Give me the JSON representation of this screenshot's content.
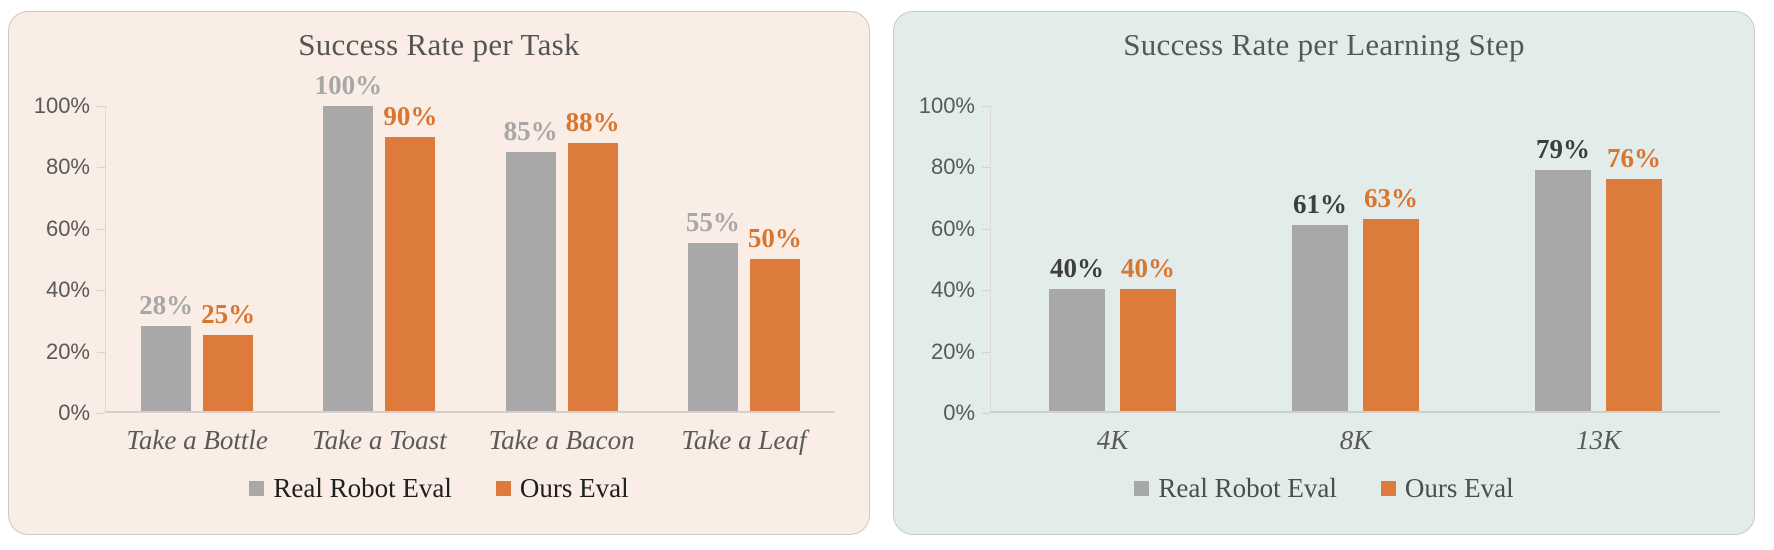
{
  "chart_data": [
    {
      "type": "bar",
      "title": "Success Rate per Task",
      "categories": [
        "Take a Bottle",
        "Take a Toast",
        "Take a Bacon",
        "Take a Leaf"
      ],
      "series": [
        {
          "name": "Real Robot Eval",
          "color": "#A8A8A8",
          "label_color": "#A7A7A7",
          "values": [
            28,
            100,
            85,
            55
          ]
        },
        {
          "name": "Ours Eval",
          "color": "#DC7B3C",
          "label_color": "#D8752F",
          "values": [
            25,
            90,
            88,
            50
          ]
        }
      ],
      "ylim": [
        0,
        100
      ],
      "yticks": [
        {
          "value": 100,
          "label": "100%"
        },
        {
          "value": 80,
          "label": "80%"
        },
        {
          "value": 60,
          "label": "60%"
        },
        {
          "value": 40,
          "label": "40%"
        },
        {
          "value": 20,
          "label": "20%"
        },
        {
          "value": 0,
          "label": "0%"
        }
      ],
      "data_label_suffix": "%",
      "grid": false,
      "legend_position": "bottom",
      "card_bg": "#F9EDE5",
      "title_color": "#555555",
      "legend_text_color": "#1F1F1F",
      "tick_label_color": "#595959",
      "category_label_color": "#595959"
    },
    {
      "type": "bar",
      "title": "Success Rate per Learning Step",
      "categories": [
        "4K",
        "8K",
        "13K"
      ],
      "series": [
        {
          "name": "Real Robot Eval",
          "color": "#A8A8A8",
          "label_color": "#3E3E3E",
          "values": [
            40,
            61,
            79
          ]
        },
        {
          "name": "Ours Eval",
          "color": "#DC7B3C",
          "label_color": "#D8752F",
          "values": [
            40,
            63,
            76
          ]
        }
      ],
      "ylim": [
        0,
        100
      ],
      "yticks": [
        {
          "value": 100,
          "label": "100%"
        },
        {
          "value": 80,
          "label": "80%"
        },
        {
          "value": 60,
          "label": "60%"
        },
        {
          "value": 40,
          "label": "40%"
        },
        {
          "value": 20,
          "label": "20%"
        },
        {
          "value": 0,
          "label": "0%"
        }
      ],
      "data_label_suffix": "%",
      "grid": false,
      "legend_position": "bottom",
      "card_bg": "#E2EDEB",
      "title_color": "#575757",
      "legend_text_color": "#4D4D4D",
      "tick_label_color": "#595959",
      "category_label_color": "#595959"
    }
  ]
}
